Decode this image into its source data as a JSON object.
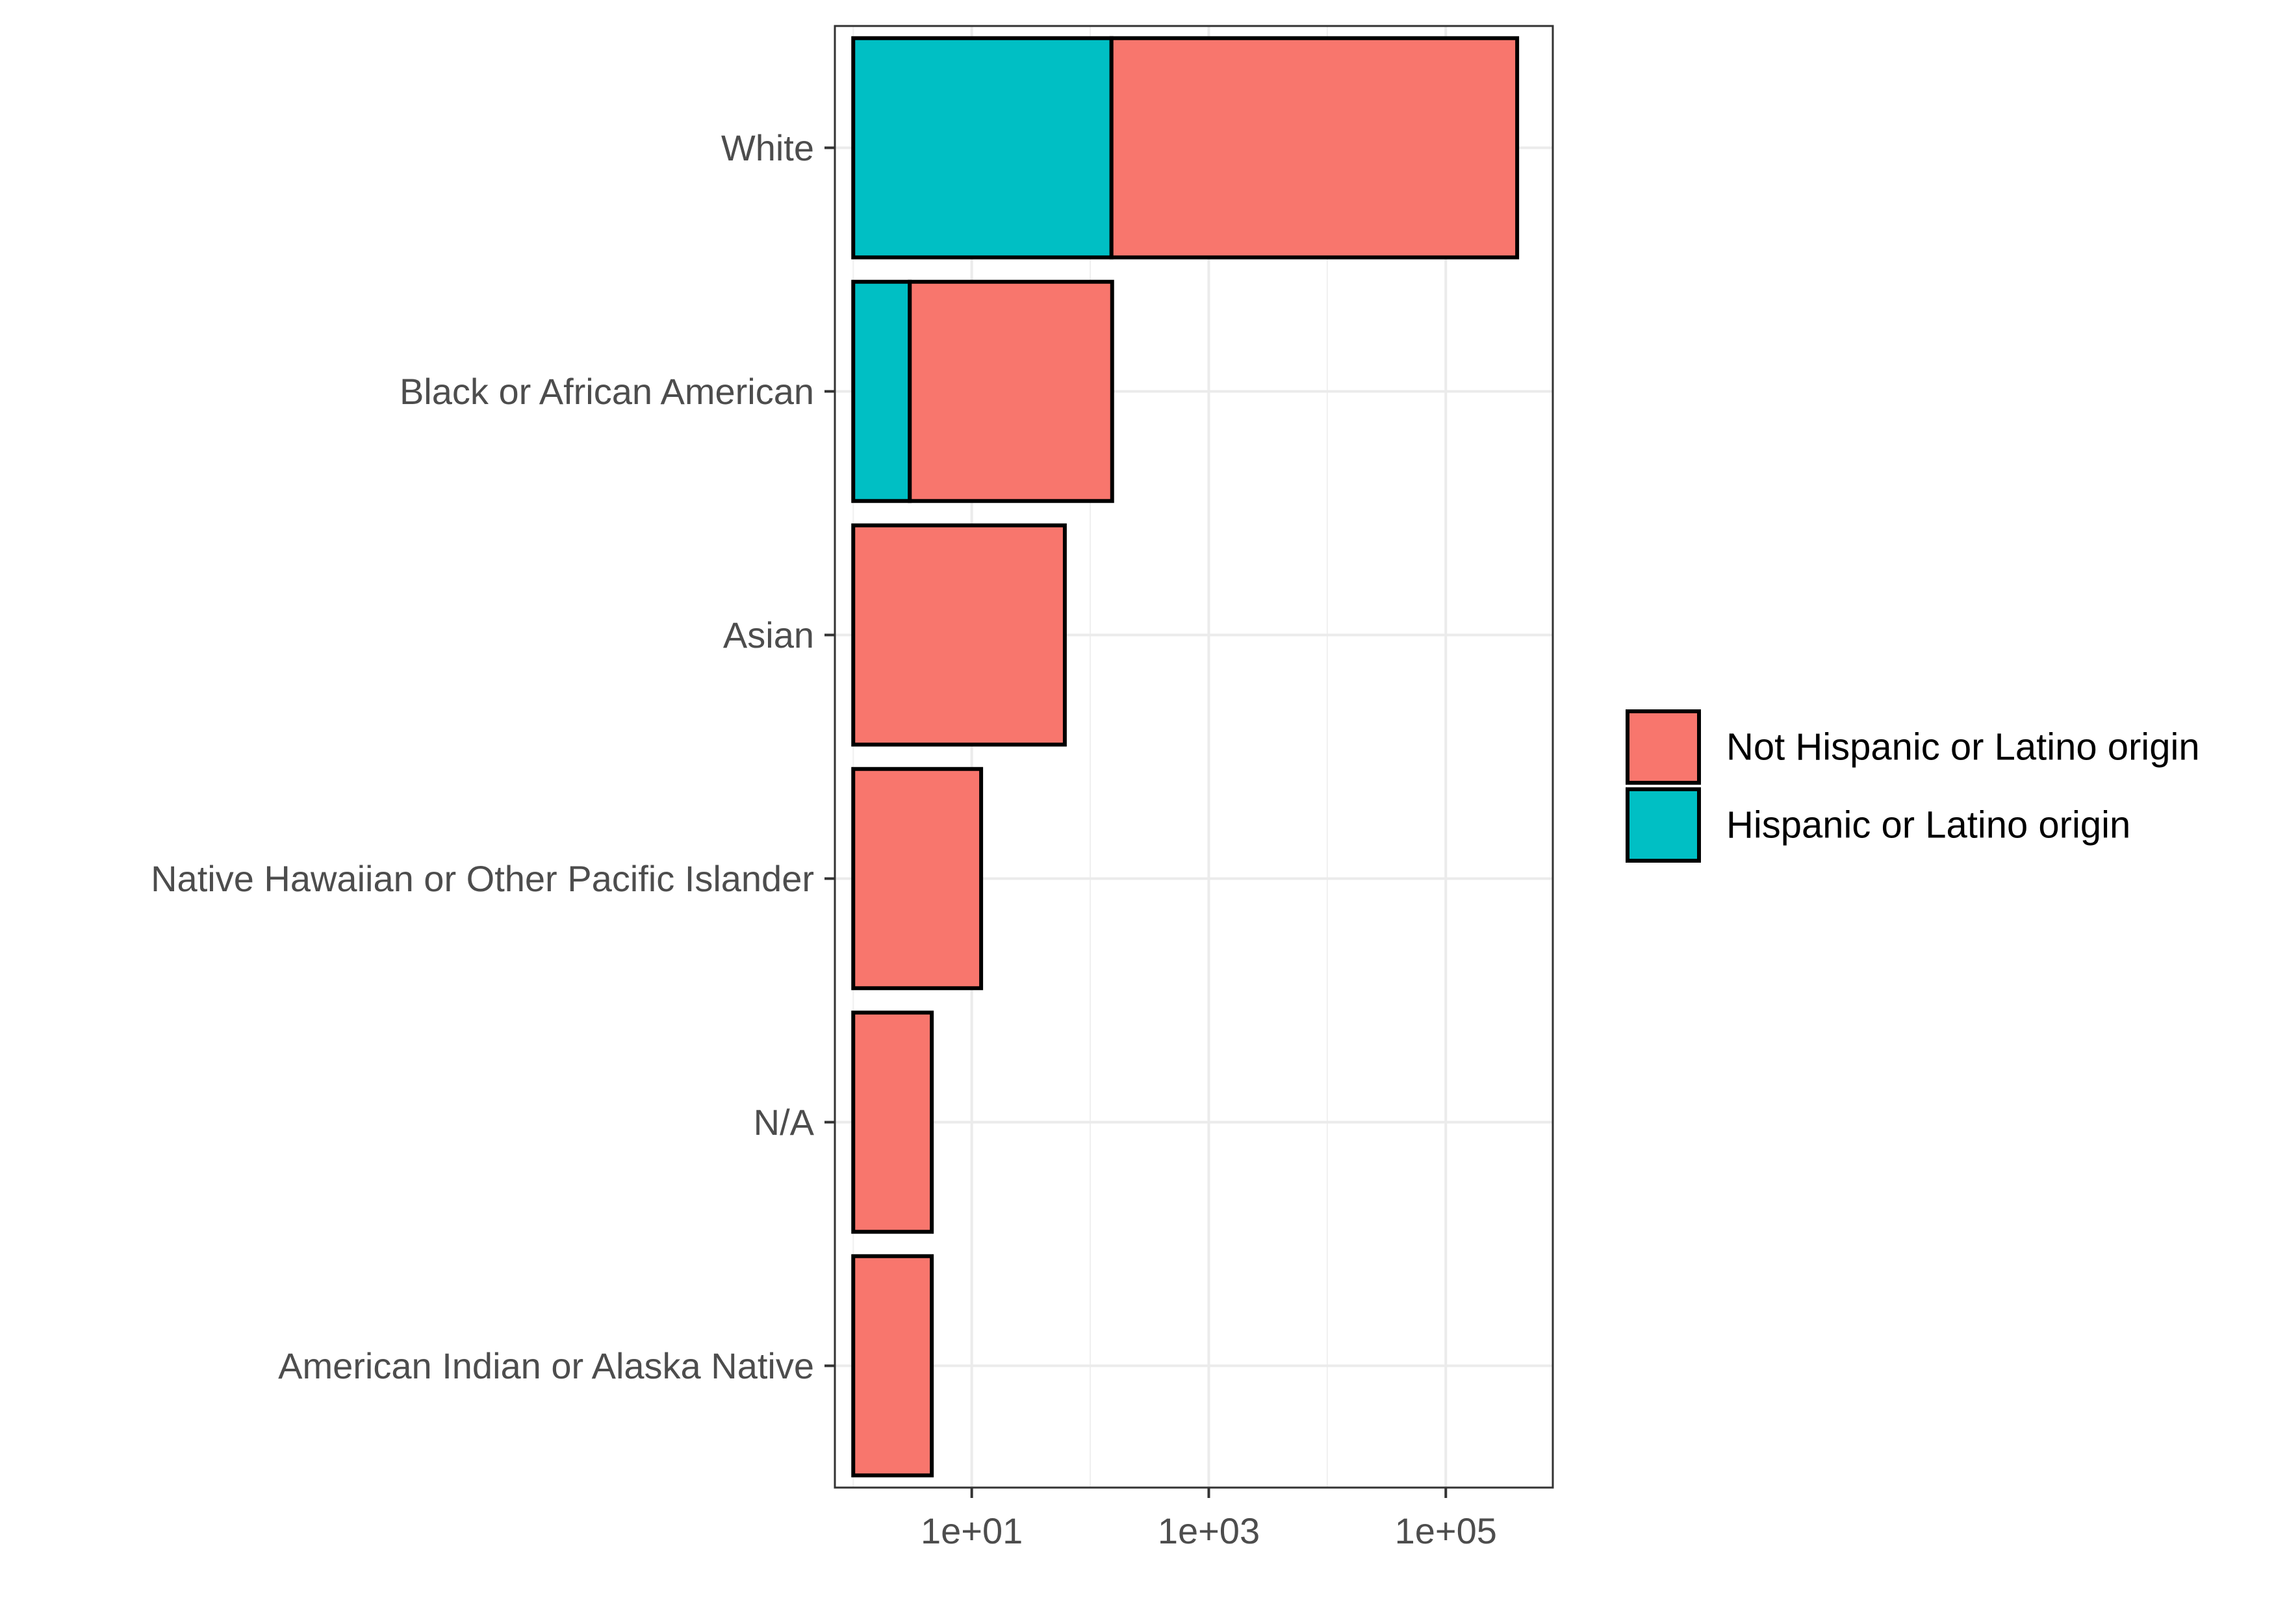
{
  "chart_data": {
    "type": "bar",
    "orientation": "horizontal",
    "stacked": true,
    "x_scale": "log10",
    "xlim": [
      0.7,
      800000
    ],
    "x_ticks": [
      10,
      1000,
      100000
    ],
    "x_tick_labels": [
      "1e+01",
      "1e+03",
      "1e+05"
    ],
    "xlabel": "",
    "ylabel": "",
    "title": "",
    "grid": true,
    "legend_position": "right",
    "categories": [
      "White",
      "Black or African American",
      "Asian",
      "Native Hawaiian or Other Pacific Islander",
      "N/A",
      "American Indian or Alaska Native"
    ],
    "series": [
      {
        "name": "Hispanic or Latino origin",
        "color": "#00BFC4",
        "values": [
          150,
          2,
          0,
          0,
          0,
          0
        ]
      },
      {
        "name": "Not Hispanic or Latino origin",
        "color": "#F8766D",
        "values": [
          400000,
          150,
          60,
          11,
          3.6,
          3.6
        ]
      }
    ],
    "legend": [
      {
        "label": "Not Hispanic or Latino origin",
        "color": "#F8766D"
      },
      {
        "label": "Hispanic or Latino origin",
        "color": "#00BFC4"
      }
    ]
  }
}
